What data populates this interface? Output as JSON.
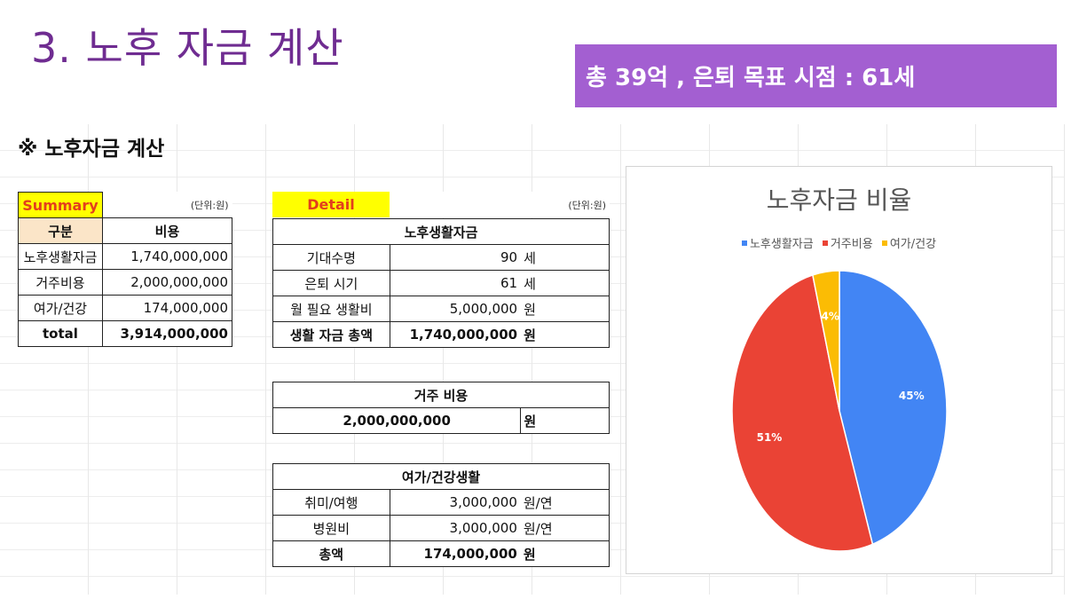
{
  "title": "3. 노후 자금 계산",
  "banner": "총 39억 , 은퇴 목표 시점  : 61세",
  "subtitle": "※ 노후자금 계산",
  "summary": {
    "label": "Summary",
    "unit": "(단위:원)",
    "headers": [
      "구분",
      "비용"
    ],
    "rows": [
      [
        "노후생활자금",
        "1,740,000,000"
      ],
      [
        "거주비용",
        "2,000,000,000"
      ],
      [
        "여가/건강",
        "174,000,000"
      ],
      [
        "total",
        "3,914,000,000"
      ]
    ]
  },
  "detail": {
    "label": "Detail",
    "unit": "(단위:원)",
    "living": {
      "header": "노후생활자금",
      "rows": [
        [
          "기대수명",
          "90",
          "세"
        ],
        [
          "은퇴 시기",
          "61",
          "세"
        ],
        [
          "월 필요 생활비",
          "5,000,000",
          "원"
        ],
        [
          "생활 자금 총액",
          "1,740,000,000",
          "원"
        ]
      ]
    },
    "housing": {
      "header": "거주 비용",
      "value": "2,000,000,000",
      "unit": "원"
    },
    "leisure": {
      "header": "여가/건강생활",
      "rows": [
        [
          "취미/여행",
          "3,000,000",
          "원/연"
        ],
        [
          "병원비",
          "3,000,000",
          "원/연"
        ],
        [
          "총액",
          "174,000,000",
          "원"
        ]
      ]
    }
  },
  "chart_data": {
    "type": "pie",
    "title": "노후자금 비율",
    "legend_position": "top",
    "categories": [
      "노후생활자금",
      "거주비용",
      "여가/건강"
    ],
    "values": [
      45,
      51,
      4
    ],
    "labels": [
      "45%",
      "51%",
      "4%"
    ],
    "colors": [
      "#4285f4",
      "#ea4335",
      "#fbbc04"
    ]
  }
}
